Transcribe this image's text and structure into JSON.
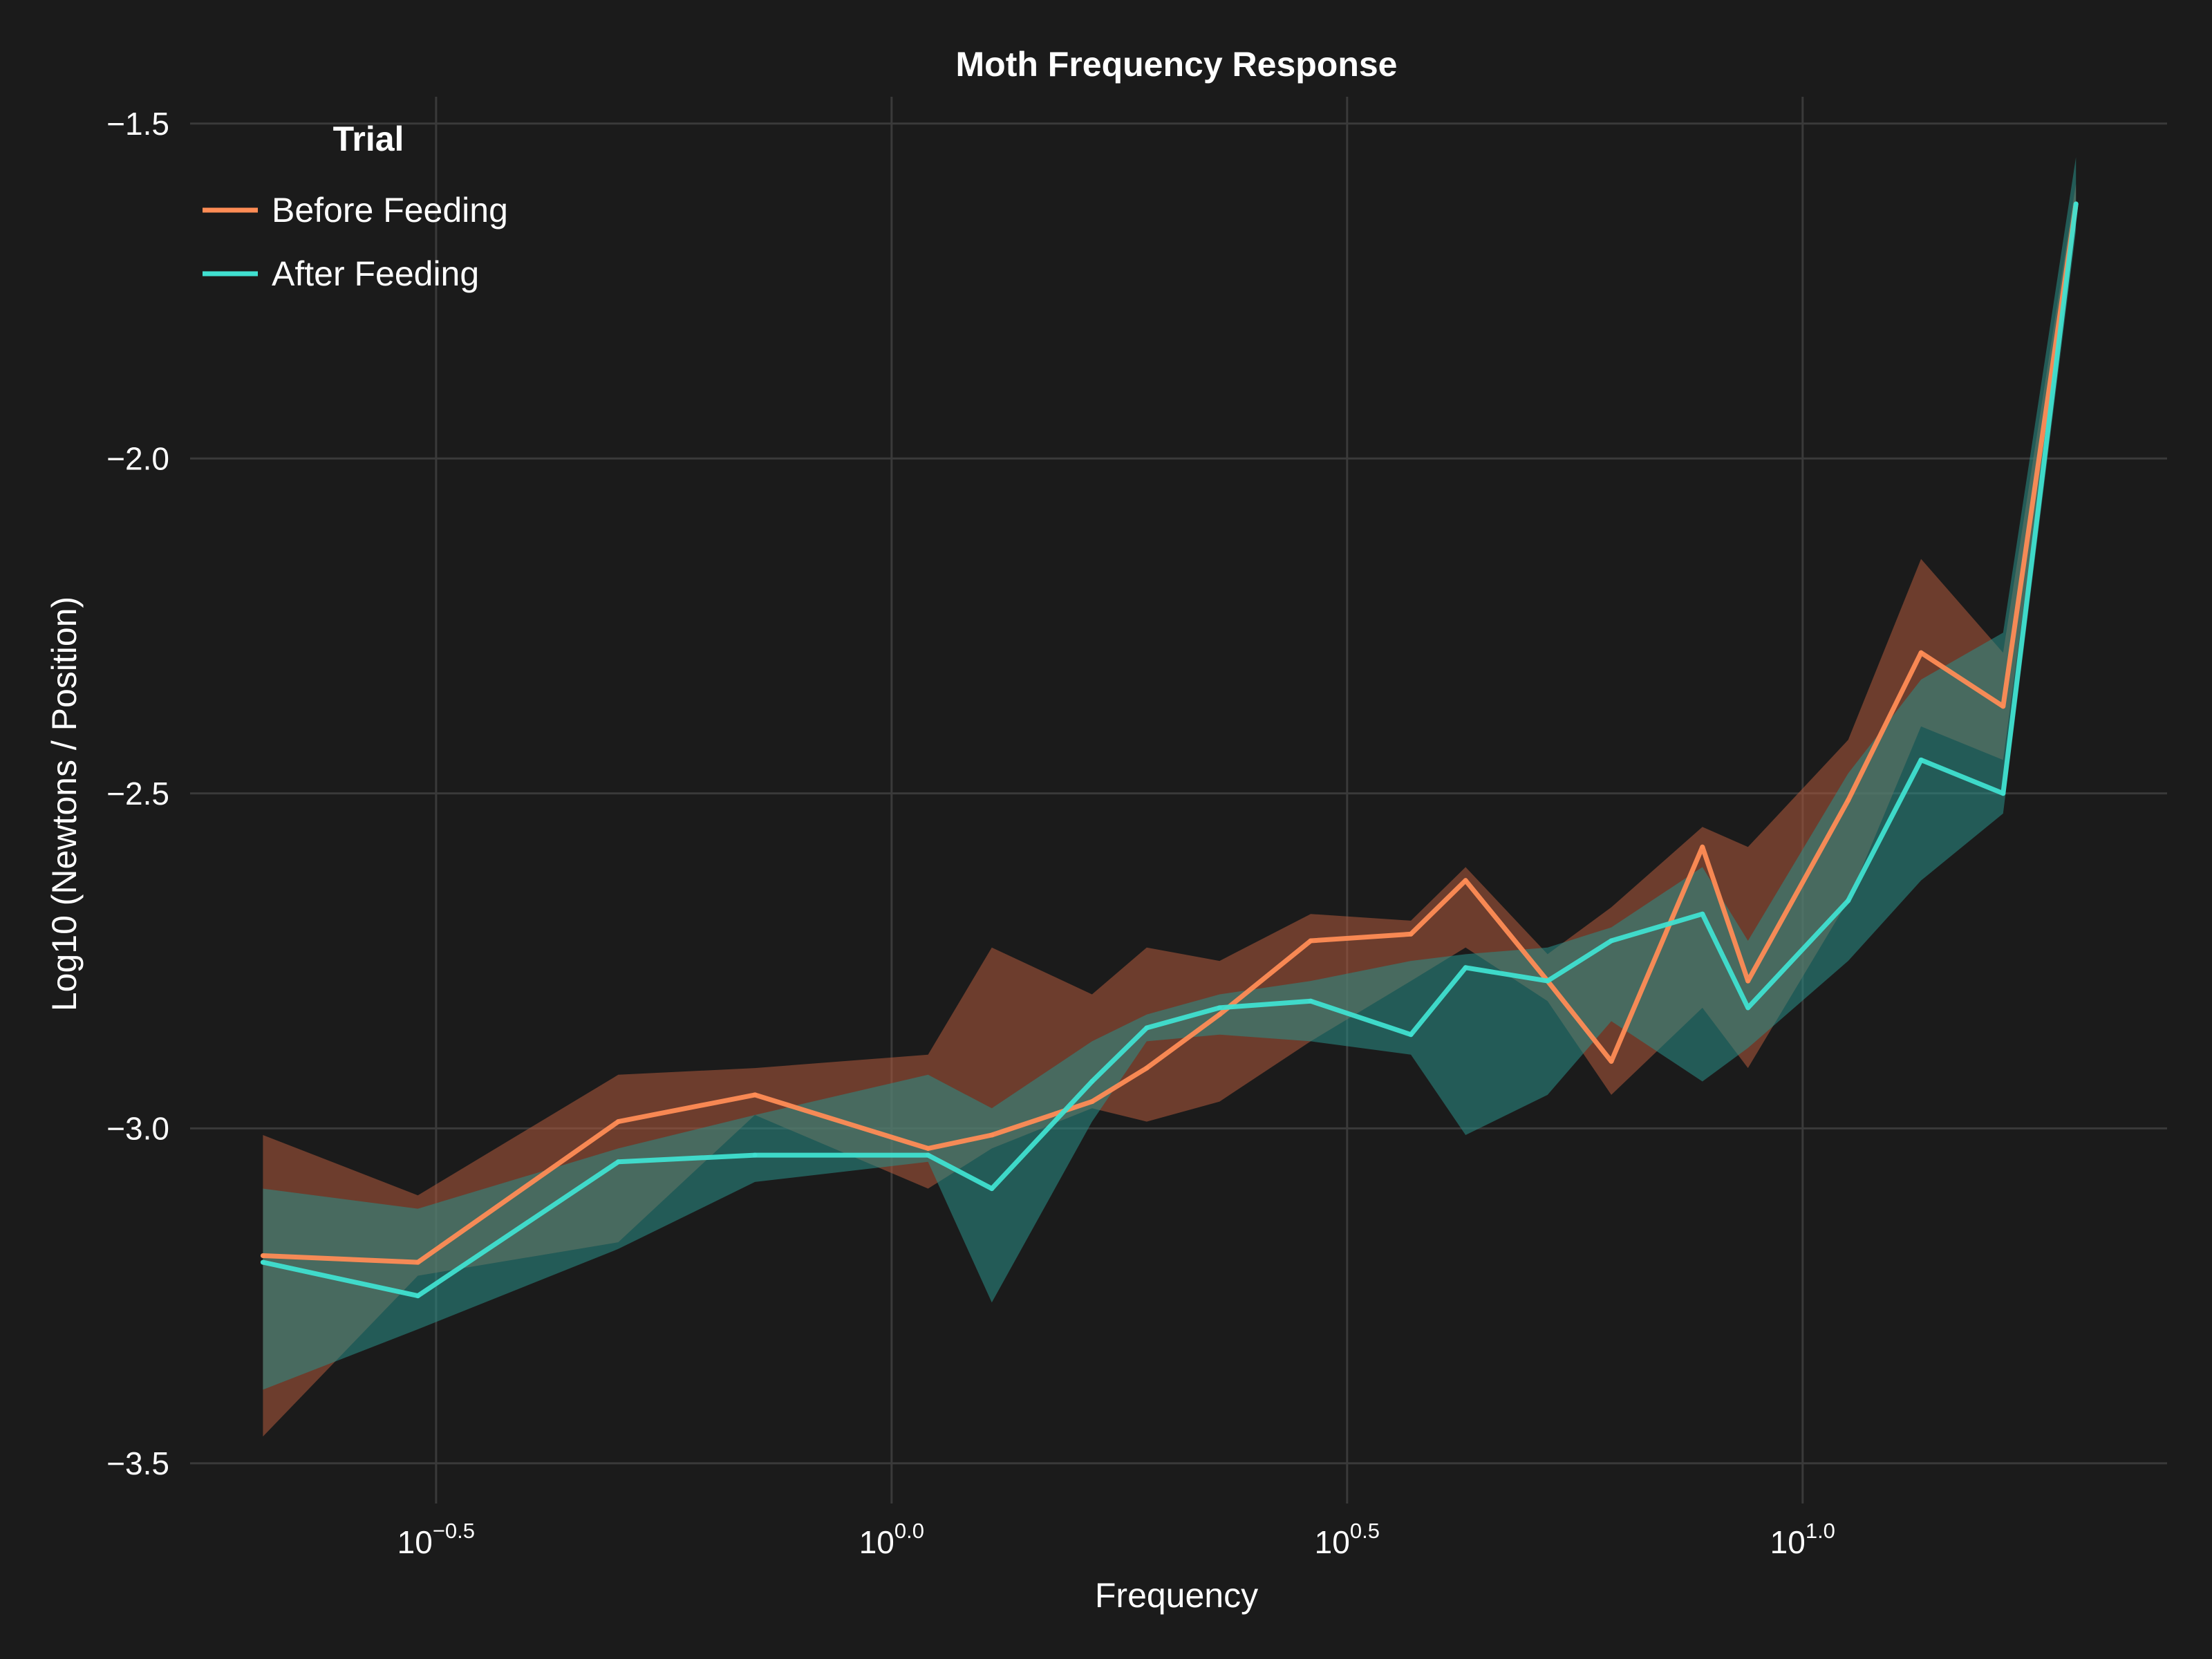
{
  "chart_data": {
    "type": "line",
    "title": "Moth Frequency Response",
    "xlabel": "Frequency",
    "ylabel": "Log10 (Newtons / Position)",
    "x_scale": "log10",
    "x_range": [
      -0.77,
      1.4
    ],
    "y_range": [
      -3.56,
      -1.46
    ],
    "x_ticks": [
      {
        "value": -0.5,
        "base": "10",
        "exp": "−0.5"
      },
      {
        "value": 0.0,
        "base": "10",
        "exp": "0.0"
      },
      {
        "value": 0.5,
        "base": "10",
        "exp": "0.5"
      },
      {
        "value": 1.0,
        "base": "10",
        "exp": "1.0"
      }
    ],
    "y_ticks": [
      {
        "value": -1.5,
        "label": "−1.5"
      },
      {
        "value": -2.0,
        "label": "−2.0"
      },
      {
        "value": -2.5,
        "label": "−2.5"
      },
      {
        "value": -3.0,
        "label": "−3.0"
      },
      {
        "value": -3.5,
        "label": "−3.5"
      }
    ],
    "grid": true,
    "legend": {
      "title": "Trial",
      "position": "top-left"
    },
    "x_log10": [
      -0.69,
      -0.52,
      -0.3,
      -0.15,
      0.04,
      0.11,
      0.22,
      0.28,
      0.36,
      0.46,
      0.57,
      0.63,
      0.72,
      0.79,
      0.89,
      0.94,
      1.05,
      1.13,
      1.22,
      1.3
    ],
    "series": [
      {
        "name": "Before Feeding",
        "color": "#ff8c55",
        "band_color": "#b0593d",
        "y": [
          -3.19,
          -3.2,
          -2.99,
          -2.95,
          -3.03,
          -3.01,
          -2.96,
          -2.91,
          -2.83,
          -2.72,
          -2.71,
          -2.63,
          -2.78,
          -2.9,
          -2.58,
          -2.78,
          -2.51,
          -2.29,
          -2.37,
          -1.62
        ],
        "lower": [
          -3.46,
          -3.22,
          -3.17,
          -2.98,
          -3.09,
          -3.03,
          -2.97,
          -2.99,
          -2.96,
          -2.87,
          -2.78,
          -2.73,
          -2.81,
          -2.95,
          -2.82,
          -2.91,
          -2.66,
          -2.4,
          -2.45,
          -1.64
        ],
        "upper": [
          -3.01,
          -3.1,
          -2.92,
          -2.91,
          -2.89,
          -2.73,
          -2.8,
          -2.73,
          -2.75,
          -2.68,
          -2.69,
          -2.61,
          -2.74,
          -2.67,
          -2.55,
          -2.58,
          -2.42,
          -2.15,
          -2.29,
          -1.59
        ]
      },
      {
        "name": "After Feeding",
        "color": "#40e0d0",
        "band_color": "#2a8f88",
        "y": [
          -3.2,
          -3.25,
          -3.05,
          -3.04,
          -3.04,
          -3.09,
          -2.93,
          -2.85,
          -2.82,
          -2.81,
          -2.86,
          -2.76,
          -2.78,
          -2.72,
          -2.68,
          -2.82,
          -2.66,
          -2.45,
          -2.5,
          -1.62
        ],
        "lower": [
          -3.39,
          -3.3,
          -3.18,
          -3.08,
          -3.05,
          -3.26,
          -2.99,
          -2.87,
          -2.86,
          -2.87,
          -2.89,
          -3.01,
          -2.95,
          -2.84,
          -2.93,
          -2.88,
          -2.75,
          -2.63,
          -2.53,
          -1.66
        ],
        "upper": [
          -3.09,
          -3.12,
          -3.03,
          -2.98,
          -2.92,
          -2.97,
          -2.87,
          -2.83,
          -2.8,
          -2.78,
          -2.75,
          -2.74,
          -2.73,
          -2.7,
          -2.61,
          -2.72,
          -2.47,
          -2.33,
          -2.26,
          -1.55
        ]
      }
    ]
  }
}
